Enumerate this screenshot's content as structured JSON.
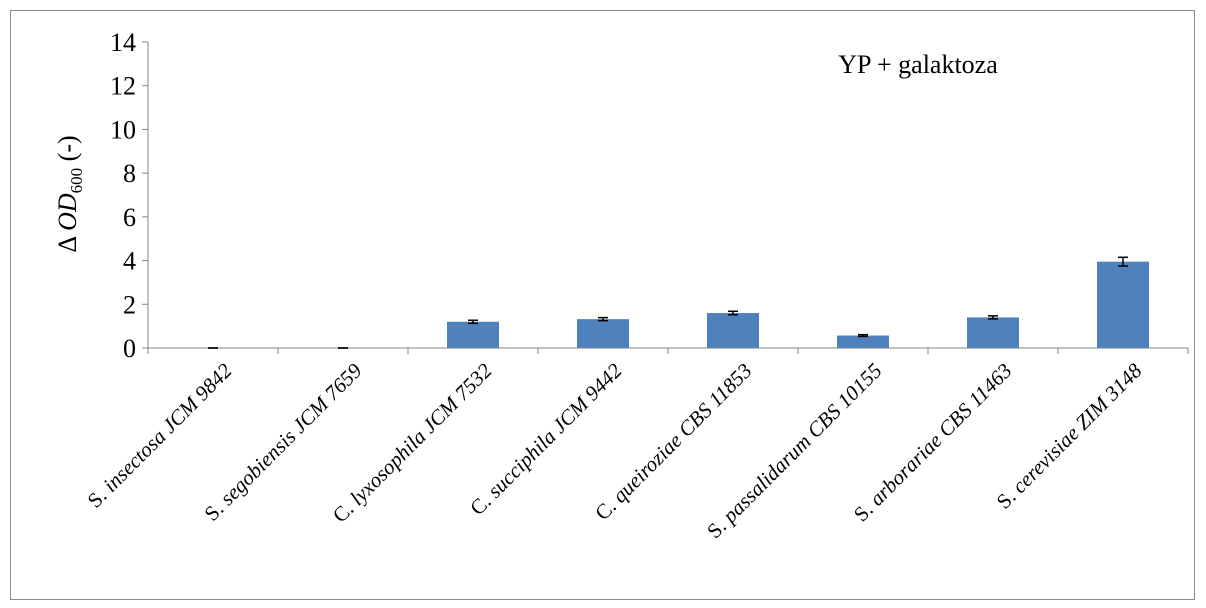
{
  "chart_data": {
    "type": "bar",
    "annotation": "YP + galaktoza",
    "ylabel": {
      "prefix": "Δ ",
      "main": "OD",
      "sub": "600",
      "suffix": " (-)"
    },
    "ylim": [
      0,
      14
    ],
    "yticks": [
      0,
      2,
      4,
      6,
      8,
      10,
      12,
      14
    ],
    "categories": [
      {
        "genus": "S.",
        "species": "insectosa",
        "strain": "JCM 9842"
      },
      {
        "genus": "S.",
        "species": "segobiensis",
        "strain": "JCM 7659"
      },
      {
        "genus": "C.",
        "species": "lyxosophila",
        "strain": "JCM 7532"
      },
      {
        "genus": "C.",
        "species": "succiphila",
        "strain": "JCM 9442"
      },
      {
        "genus": "C.",
        "species": "queiroziae",
        "strain": "CBS 11853"
      },
      {
        "genus": "S.",
        "species": "passalidarum",
        "strain": "CBS 10155"
      },
      {
        "genus": "S.",
        "species": "arborariae",
        "strain": "CBS 11463"
      },
      {
        "genus": "S.",
        "species": "cerevisiae",
        "strain": "ZIM 3148"
      }
    ],
    "values": [
      0.0,
      0.0,
      1.2,
      1.32,
      1.6,
      0.57,
      1.4,
      3.95
    ],
    "errors": [
      0.0,
      0.0,
      0.07,
      0.07,
      0.08,
      0.04,
      0.07,
      0.2
    ],
    "bar_color": "#4f81bd",
    "grid": false,
    "legend": "none"
  }
}
